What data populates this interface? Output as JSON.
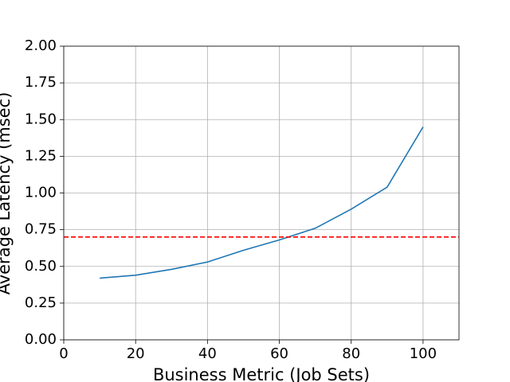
{
  "chart_data": {
    "type": "line",
    "x_label": "Business Metric (Job Sets)",
    "y_label": "Average Latency (msec)",
    "x": [
      10,
      20,
      30,
      40,
      50,
      60,
      70,
      80,
      90,
      100
    ],
    "series": [
      {
        "color": "#1f77b4",
        "values": [
          0.42,
          0.44,
          0.48,
          0.53,
          0.61,
          0.68,
          0.76,
          0.89,
          1.04,
          1.45
        ]
      }
    ],
    "reference_line": {
      "value": 0.7,
      "color": "#ff0000"
    },
    "xlim": [
      0,
      110
    ],
    "xticks": [
      0,
      20,
      40,
      60,
      80,
      100
    ],
    "ylim": [
      0,
      2
    ],
    "yticks": [
      {
        "value": 0,
        "label": "0.00"
      },
      {
        "value": 0.25,
        "label": "0.25"
      },
      {
        "value": 0.5,
        "label": "0.50"
      },
      {
        "value": 0.75,
        "label": "0.75"
      },
      {
        "value": 1,
        "label": "1.00"
      },
      {
        "value": 1.25,
        "label": "1.25"
      },
      {
        "value": 1.5,
        "label": "1.50"
      },
      {
        "value": 1.75,
        "label": "1.75"
      },
      {
        "value": 2,
        "label": "2.00"
      }
    ],
    "grid": true
  }
}
